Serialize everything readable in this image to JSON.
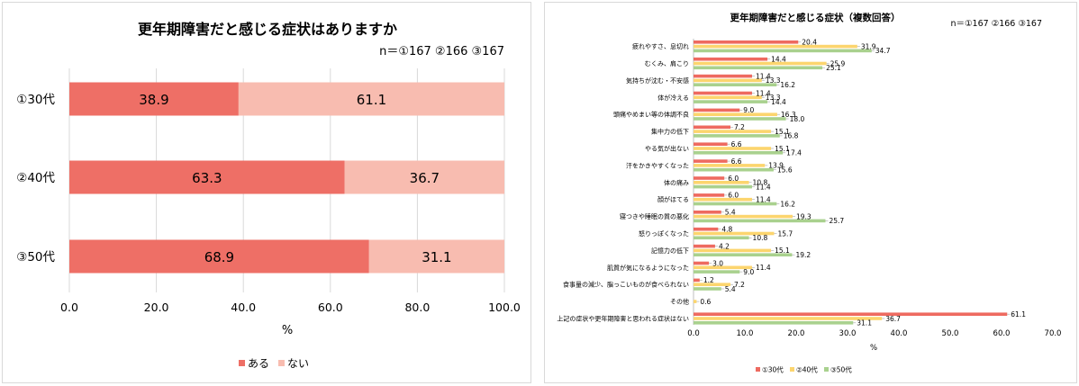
{
  "chart_data": [
    {
      "type": "bar",
      "orientation": "horizontal",
      "stacked": true,
      "title": "更年期障害だと感じる症状はありますか",
      "note": "n＝①167 ②166 ③167",
      "categories": [
        "①30代",
        "②40代",
        "③50代"
      ],
      "series": [
        {
          "name": "ある",
          "values": [
            38.9,
            63.3,
            68.9
          ],
          "color": "#ee6f66"
        },
        {
          "name": "ない",
          "values": [
            61.1,
            36.7,
            31.1
          ],
          "color": "#f8bcb0"
        }
      ],
      "xlabel": "%",
      "xlim": [
        0,
        100
      ],
      "ticks": [
        "0.0",
        "20.0",
        "40.0",
        "60.0",
        "80.0",
        "100.0"
      ],
      "legend": "bottom",
      "grid": true
    },
    {
      "type": "bar",
      "orientation": "horizontal",
      "title": "更年期障害だと感じる症状（複数回答）",
      "note": "n＝①167 ②166 ③167",
      "categories": [
        "疲れやすさ、息切れ",
        "むくみ、肩こり",
        "気持ちが沈む・不安感",
        "体が冷える",
        "頭痛やめまい等の体調不良",
        "集中力の低下",
        "やる気が出ない",
        "汗をかきやすくなった",
        "体の痛み",
        "顔がほてる",
        "寝つきや睡眠の質の悪化",
        "怒りっぽくなった",
        "記憶力の低下",
        "肌質が気になるようになった",
        "食事量の減少、脂っこいものが食べられない",
        "その他",
        "上記の症状や更年期障害と思われる症状はない"
      ],
      "series": [
        {
          "name": "①30代",
          "color": "#ee6a60",
          "values": [
            20.4,
            14.4,
            11.4,
            11.4,
            9.0,
            7.2,
            6.6,
            6.6,
            6.0,
            6.0,
            5.4,
            4.8,
            4.2,
            3.0,
            1.2,
            0.0,
            61.1
          ],
          "labels": [
            "20.4",
            "14.4",
            "11.4",
            "11.4",
            "9.0",
            "7.2",
            "6.6",
            "6.6",
            "6.0",
            "6.0",
            "5.4",
            "4.8",
            "4.2",
            "3.0",
            "1.2",
            "",
            "61.1"
          ]
        },
        {
          "name": "②40代",
          "color": "#fcd56e",
          "values": [
            31.9,
            25.9,
            13.3,
            13.3,
            16.3,
            15.1,
            15.1,
            13.9,
            10.8,
            11.4,
            19.3,
            15.7,
            15.1,
            11.4,
            7.2,
            0.6,
            36.7
          ],
          "labels": [
            "31.9",
            "25.9",
            "13.3",
            "13.3",
            "16.3",
            "15.1",
            "15.1",
            "13.9",
            "10.8",
            "11.4",
            "19.3",
            "15.7",
            "15.1",
            "11.4",
            "7.2",
            "0.6",
            "36.7"
          ]
        },
        {
          "name": "③50代",
          "color": "#a9d18e",
          "values": [
            34.7,
            25.1,
            16.2,
            14.4,
            18.0,
            16.8,
            17.4,
            15.6,
            11.4,
            16.2,
            25.7,
            10.8,
            19.2,
            9.0,
            5.4,
            0.0,
            31.1
          ],
          "labels": [
            "34.7",
            "25.1",
            "16.2",
            "14.4",
            "18.0",
            "16.8",
            "17.4",
            "15.6",
            "11.4",
            "16.2",
            "25.7",
            "10.8",
            "19.2",
            "9.0",
            "5.4",
            "",
            "31.1"
          ]
        }
      ],
      "xlabel": "%",
      "xlim": [
        0,
        70
      ],
      "ticks": [
        "0.0",
        "10.0",
        "20.0",
        "30.0",
        "40.0",
        "50.0",
        "60.0",
        "70.0"
      ],
      "legend": "bottom",
      "grid": false
    }
  ]
}
